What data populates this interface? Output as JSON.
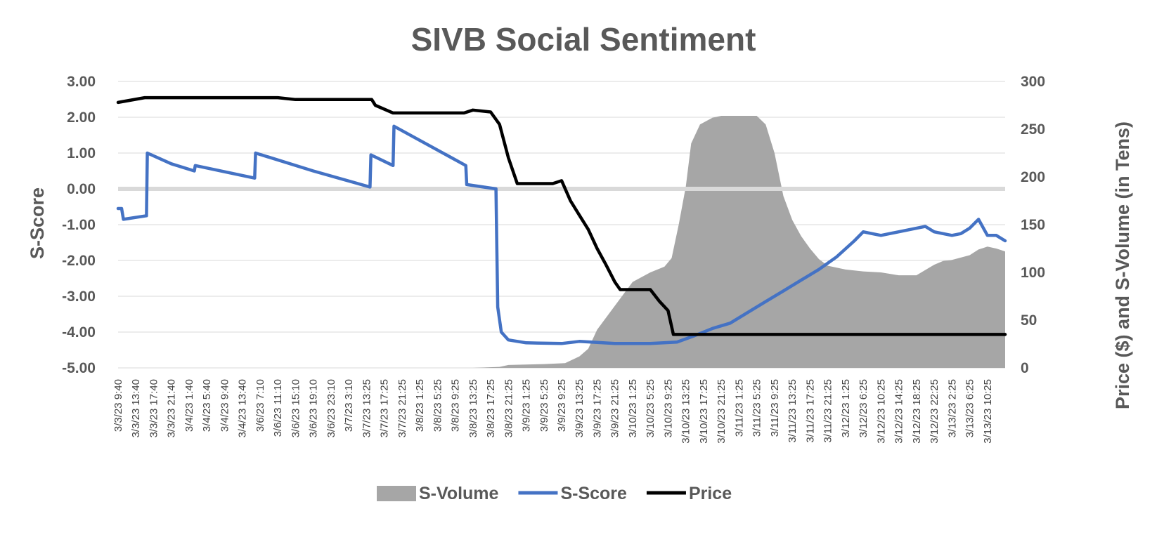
{
  "chart_data": {
    "type": "line",
    "title": "SIVB Social Sentiment",
    "y_left_label": "S-Score",
    "y_right_label": "Price ($) and S-Volume (in Tens)",
    "y_left_range": [
      -5,
      3
    ],
    "y_right_range": [
      0,
      300
    ],
    "y_left_ticks": [
      "3.00",
      "2.00",
      "1.00",
      "0.00",
      "-1.00",
      "-2.00",
      "-3.00",
      "-4.00",
      "-5.00"
    ],
    "y_right_ticks": [
      "300",
      "250",
      "200",
      "150",
      "100",
      "50",
      "0"
    ],
    "x_tick_labels": [
      "3/3/23 9:40",
      "3/3/23 13:40",
      "3/3/23 17:40",
      "3/3/23 21:40",
      "3/4/23 1:40",
      "3/4/23 5:40",
      "3/4/23 9:40",
      "3/4/23 13:40",
      "3/6/23 7:10",
      "3/6/23 11:10",
      "3/6/23 15:10",
      "3/6/23 19:10",
      "3/6/23 23:10",
      "3/7/23 3:10",
      "3/7/23 13:25",
      "3/7/23 17:25",
      "3/7/23 21:25",
      "3/8/23 1:25",
      "3/8/23 5:25",
      "3/8/23 9:25",
      "3/8/23 13:25",
      "3/8/23 17:25",
      "3/8/23 21:25",
      "3/9/23 1:25",
      "3/9/23 5:25",
      "3/9/23 9:25",
      "3/9/23 13:25",
      "3/9/23 17:25",
      "3/9/23 21:25",
      "3/10/23 1:25",
      "3/10/23 5:25",
      "3/10/23 9:25",
      "3/10/23 13:25",
      "3/10/23 17:25",
      "3/10/23 21:25",
      "3/11/23 1:25",
      "3/11/23 5:25",
      "3/11/23 9:25",
      "3/11/23 13:25",
      "3/11/23 17:25",
      "3/11/23 21:25",
      "3/12/23 1:25",
      "3/12/23 6:25",
      "3/12/23 10:25",
      "3/12/23 14:25",
      "3/12/23 18:25",
      "3/12/23 22:25",
      "3/13/23 2:25",
      "3/13/23 6:25",
      "3/13/23 10:25"
    ],
    "x_domain": [
      0,
      50
    ],
    "grid": true,
    "legend_position": "bottom",
    "series": [
      {
        "name": "S-Volume",
        "type": "area",
        "axis": "right",
        "color": "#a6a6a6",
        "points": [
          [
            0,
            0
          ],
          [
            20,
            0
          ],
          [
            21.5,
            1
          ],
          [
            22,
            3
          ],
          [
            24,
            4
          ],
          [
            25.2,
            5
          ],
          [
            26,
            12
          ],
          [
            26.5,
            20
          ],
          [
            27,
            40
          ],
          [
            28,
            65
          ],
          [
            29,
            90
          ],
          [
            30,
            100
          ],
          [
            30.8,
            106
          ],
          [
            31.2,
            115
          ],
          [
            31.6,
            150
          ],
          [
            32,
            190
          ],
          [
            32.3,
            235
          ],
          [
            32.8,
            255
          ],
          [
            33.5,
            262
          ],
          [
            34,
            264
          ],
          [
            36,
            264
          ],
          [
            36.5,
            255
          ],
          [
            37,
            225
          ],
          [
            37.5,
            180
          ],
          [
            38,
            155
          ],
          [
            38.5,
            138
          ],
          [
            39,
            125
          ],
          [
            39.5,
            114
          ],
          [
            40,
            107
          ],
          [
            41,
            103
          ],
          [
            42,
            101
          ],
          [
            43,
            100
          ],
          [
            44,
            97
          ],
          [
            45,
            97
          ],
          [
            46,
            108
          ],
          [
            46.5,
            112
          ],
          [
            47,
            113
          ],
          [
            48,
            118
          ],
          [
            48.5,
            124
          ],
          [
            49,
            127
          ],
          [
            49.5,
            125
          ],
          [
            50,
            122
          ]
        ]
      },
      {
        "name": "S-Score",
        "type": "line",
        "axis": "left",
        "color": "#4472c4",
        "points": [
          [
            0,
            -0.55
          ],
          [
            0.2,
            -0.55
          ],
          [
            0.3,
            -0.85
          ],
          [
            1.6,
            -0.75
          ],
          [
            1.65,
            1.0
          ],
          [
            3,
            0.7
          ],
          [
            4.3,
            0.5
          ],
          [
            4.35,
            0.65
          ],
          [
            7.7,
            0.3
          ],
          [
            7.75,
            1.0
          ],
          [
            11,
            0.5
          ],
          [
            14.2,
            0.05
          ],
          [
            14.25,
            0.95
          ],
          [
            15.5,
            0.65
          ],
          [
            15.55,
            1.75
          ],
          [
            19.6,
            0.65
          ],
          [
            19.65,
            0.12
          ],
          [
            21.3,
            0.0
          ],
          [
            21.4,
            -3.3
          ],
          [
            21.6,
            -4.0
          ],
          [
            22,
            -4.22
          ],
          [
            23,
            -4.3
          ],
          [
            25,
            -4.32
          ],
          [
            26,
            -4.26
          ],
          [
            28,
            -4.32
          ],
          [
            30,
            -4.32
          ],
          [
            31.5,
            -4.28
          ],
          [
            32.5,
            -4.1
          ],
          [
            33.5,
            -3.9
          ],
          [
            34.5,
            -3.75
          ],
          [
            35.5,
            -3.45
          ],
          [
            36.5,
            -3.15
          ],
          [
            37.5,
            -2.85
          ],
          [
            38.5,
            -2.55
          ],
          [
            39.5,
            -2.25
          ],
          [
            40.5,
            -1.9
          ],
          [
            41.5,
            -1.45
          ],
          [
            42,
            -1.2
          ],
          [
            42.5,
            -1.25
          ],
          [
            43,
            -1.3
          ],
          [
            44,
            -1.2
          ],
          [
            45,
            -1.1
          ],
          [
            45.5,
            -1.05
          ],
          [
            46,
            -1.2
          ],
          [
            46.5,
            -1.25
          ],
          [
            47,
            -1.3
          ],
          [
            47.5,
            -1.25
          ],
          [
            48,
            -1.1
          ],
          [
            48.5,
            -0.85
          ],
          [
            49,
            -1.3
          ],
          [
            49.5,
            -1.3
          ],
          [
            50,
            -1.45
          ]
        ]
      },
      {
        "name": "Price",
        "type": "line",
        "axis": "right",
        "color": "#000000",
        "points": [
          [
            0,
            278
          ],
          [
            1.5,
            283
          ],
          [
            9,
            283
          ],
          [
            10,
            281
          ],
          [
            14.3,
            281
          ],
          [
            14.5,
            275
          ],
          [
            15.5,
            267
          ],
          [
            19.5,
            267
          ],
          [
            20,
            270
          ],
          [
            21,
            268
          ],
          [
            21.5,
            255
          ],
          [
            22,
            220
          ],
          [
            22.5,
            193
          ],
          [
            24.5,
            193
          ],
          [
            25,
            196
          ],
          [
            25.5,
            175
          ],
          [
            26,
            160
          ],
          [
            26.5,
            145
          ],
          [
            27,
            125
          ],
          [
            27.5,
            108
          ],
          [
            28,
            90
          ],
          [
            28.3,
            82
          ],
          [
            30,
            82
          ],
          [
            30.5,
            70
          ],
          [
            31,
            60
          ],
          [
            31.3,
            35
          ],
          [
            50,
            35
          ]
        ]
      }
    ]
  }
}
